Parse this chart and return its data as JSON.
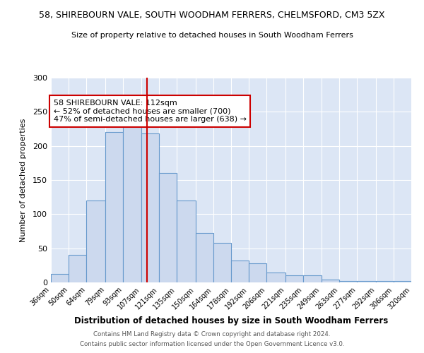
{
  "title": "58, SHIREBOURN VALE, SOUTH WOODHAM FERRERS, CHELMSFORD, CM3 5ZX",
  "subtitle": "Size of property relative to detached houses in South Woodham Ferrers",
  "xlabel": "Distribution of detached houses by size in South Woodham Ferrers",
  "ylabel": "Number of detached properties",
  "bins": [
    36,
    50,
    64,
    79,
    93,
    107,
    121,
    135,
    150,
    164,
    178,
    192,
    206,
    221,
    235,
    249,
    263,
    277,
    292,
    306,
    320
  ],
  "counts": [
    12,
    40,
    120,
    220,
    232,
    218,
    160,
    120,
    72,
    58,
    32,
    28,
    15,
    10,
    10,
    4,
    2,
    2,
    2,
    2
  ],
  "bar_facecolor": "#ccd9ee",
  "bar_edgecolor": "#6699cc",
  "vline_x": 112,
  "vline_color": "#cc0000",
  "annotation_text": "58 SHIREBOURN VALE: 112sqm\n← 52% of detached houses are smaller (700)\n47% of semi-detached houses are larger (638) →",
  "annotation_box_edgecolor": "#cc0000",
  "annotation_box_facecolor": "white",
  "ylim": [
    0,
    300
  ],
  "yticks": [
    0,
    50,
    100,
    150,
    200,
    250,
    300
  ],
  "background_color": "#dce6f5",
  "footer_line1": "Contains HM Land Registry data © Crown copyright and database right 2024.",
  "footer_line2": "Contains public sector information licensed under the Open Government Licence v3.0."
}
